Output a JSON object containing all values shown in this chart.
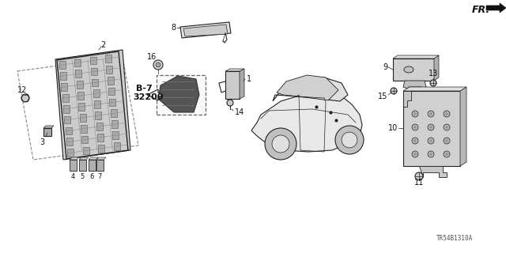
{
  "background_color": "#ffffff",
  "diagram_code": "TR54B1310A",
  "line_color": "#222222",
  "text_color": "#111111",
  "gray_fill": "#d8d8d8",
  "dark_fill": "#555555",
  "light_fill": "#eeeeee"
}
